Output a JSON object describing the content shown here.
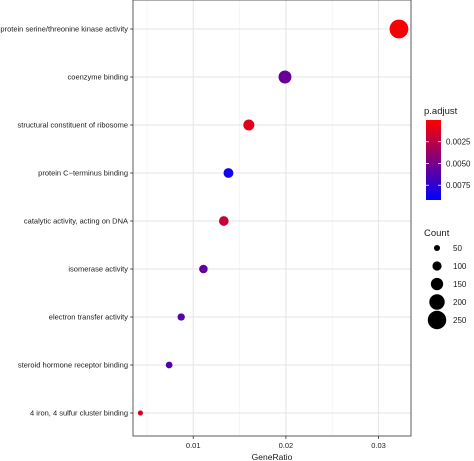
{
  "chart_data": {
    "type": "scatter",
    "title": "",
    "xlabel": "GeneRatio",
    "ylabel": "",
    "xlim": [
      0.0035,
      0.0335
    ],
    "xticks": [
      0.01,
      0.02,
      0.03
    ],
    "xtick_labels": [
      "0.01",
      "0.02",
      "0.03"
    ],
    "grid": true,
    "legend_position": "right",
    "categories": [
      "protein serine/threonine kinase activity",
      "coenzyme binding",
      "structural constituent of ribosome",
      "protein C−terminus binding",
      "catalytic activity, acting on DNA",
      "isomerase activity",
      "electron transfer activity",
      "steroid hormone receptor binding",
      "4 iron, 4 sulfur cluster binding"
    ],
    "points": [
      {
        "term": "protein serine/threonine kinase activity",
        "gene_ratio": 0.0322,
        "p_adjust": 0.0002,
        "count": 255
      },
      {
        "term": "coenzyme binding",
        "gene_ratio": 0.0199,
        "p_adjust": 0.0054,
        "count": 160
      },
      {
        "term": "structural constituent of ribosome",
        "gene_ratio": 0.016,
        "p_adjust": 0.001,
        "count": 130
      },
      {
        "term": "protein C−terminus binding",
        "gene_ratio": 0.0138,
        "p_adjust": 0.0085,
        "count": 110
      },
      {
        "term": "catalytic activity, acting on DNA",
        "gene_ratio": 0.0133,
        "p_adjust": 0.002,
        "count": 108
      },
      {
        "term": "isomerase activity",
        "gene_ratio": 0.0111,
        "p_adjust": 0.0056,
        "count": 90
      },
      {
        "term": "electron transfer activity",
        "gene_ratio": 0.0087,
        "p_adjust": 0.006,
        "count": 70
      },
      {
        "term": "steroid hormone receptor binding",
        "gene_ratio": 0.0074,
        "p_adjust": 0.0064,
        "count": 60
      },
      {
        "term": "4 iron, 4 sulfur cluster binding",
        "gene_ratio": 0.0043,
        "p_adjust": 0.0015,
        "count": 35
      }
    ],
    "color_legend": {
      "title": "p.adjust",
      "range": [
        0.0,
        0.0092
      ],
      "low_color": "#ff0000",
      "high_color": "#0000ff",
      "ticks": [
        0.0025,
        0.005,
        0.0075
      ],
      "tick_labels": [
        "0.0025",
        "0.0050",
        "0.0075"
      ]
    },
    "size_legend": {
      "title": "Count",
      "values": [
        50,
        100,
        150,
        200,
        250
      ],
      "labels": [
        "50",
        "100",
        "150",
        "200",
        "250"
      ]
    }
  }
}
